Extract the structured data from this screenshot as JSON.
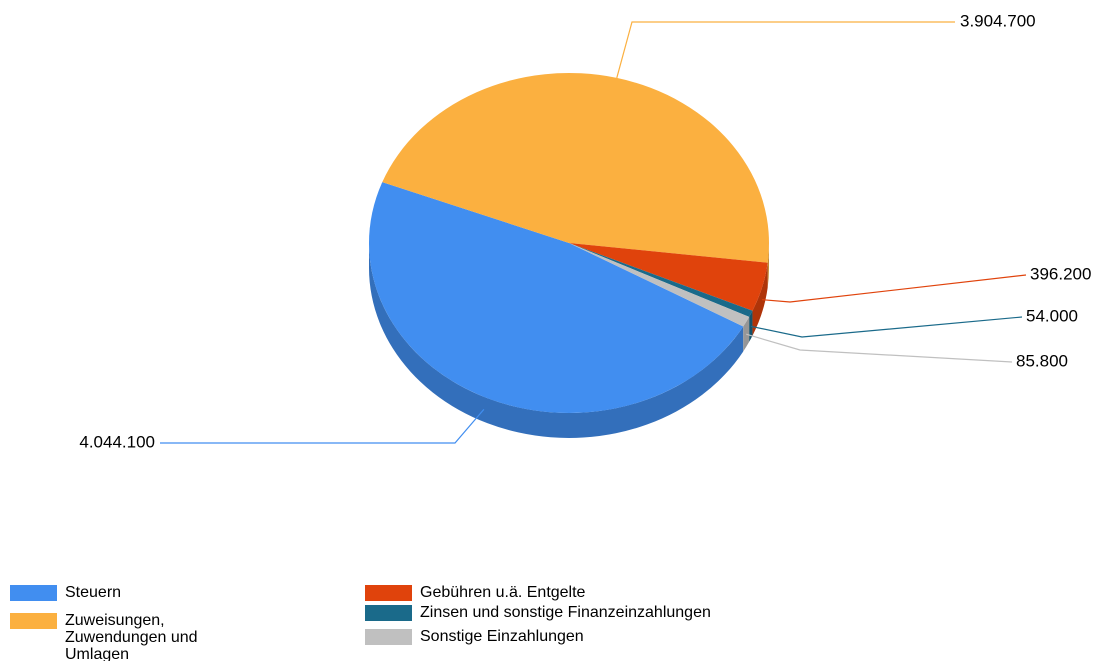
{
  "chart_data": {
    "type": "pie",
    "categories": [
      "Steuern",
      "Zuweisungen, Zuwendungen und Umlagen",
      "Gebühren u.ä. Entgelte",
      "Zinsen und sonstige Finanzeinzahlungen",
      "Sonstige Einzahlungen"
    ],
    "values": [
      4044100,
      3904700,
      396200,
      54000,
      85800
    ],
    "value_labels": [
      "4.044.100",
      "3.904.700",
      "396.200",
      "54.000",
      "85.800"
    ],
    "colors": [
      "#418ef0",
      "#fbb040",
      "#e0430c",
      "#1a6a8a",
      "#c0c0c0"
    ],
    "legend": "bottom"
  }
}
